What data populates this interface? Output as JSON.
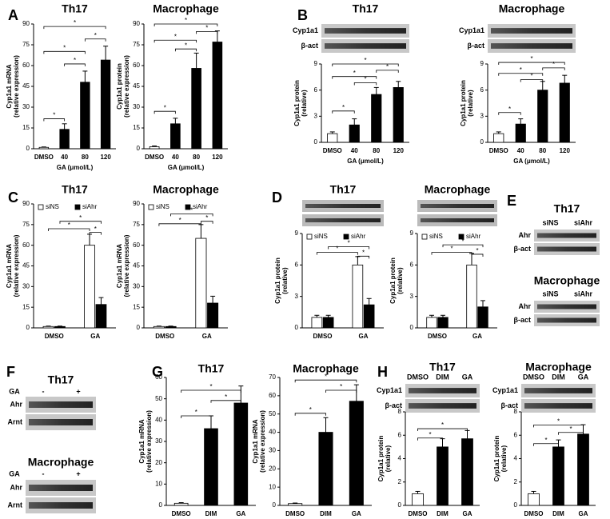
{
  "figure": {
    "panels": [
      "A",
      "B",
      "C",
      "D",
      "E",
      "F",
      "G",
      "H"
    ],
    "blots": [
      {
        "rows": [
          "Cyp1a1",
          "β-act"
        ]
      },
      {
        "rows": [
          "Cyp1a1",
          "β-act"
        ]
      },
      {
        "title": "Th17",
        "lanes": [
          "siNS",
          "siAhr"
        ],
        "rows": [
          "Ahr",
          "β-act"
        ]
      },
      {
        "title": "Macrophage",
        "lanes": [
          "siNS",
          "siAhr"
        ],
        "rows": [
          "Ahr",
          "β-act"
        ]
      },
      {
        "title": "Th17",
        "treatment": "GA",
        "lanes": [
          "-",
          "+"
        ],
        "rows": [
          "Ahr",
          "Arnt"
        ]
      },
      {
        "title": "Macrophage",
        "treatment": "GA",
        "lanes": [
          "-",
          "+"
        ],
        "rows": [
          "Ahr",
          "Arnt"
        ]
      },
      {
        "lanes": [
          "DMSO",
          "DIM",
          "GA"
        ],
        "rows": [
          "Cyp1a1",
          "β-act"
        ]
      },
      {
        "lanes": [
          "DMSO",
          "DIM",
          "GA"
        ],
        "rows": [
          "Cyp1a1",
          "β-act"
        ]
      }
    ]
  },
  "chart_data": [
    {
      "type": "bar",
      "title": "Th17",
      "ylabel": [
        "Cyp1a1 mRNA",
        "(relative expression)"
      ],
      "xlabel": "GA (μmol/L)",
      "categories": [
        "DMSO",
        "40",
        "80",
        "120"
      ],
      "values": [
        1,
        14,
        48,
        64
      ],
      "errors": [
        0.3,
        4,
        8,
        10
      ],
      "colors": [
        "#ffffff",
        "#000000",
        "#000000",
        "#000000"
      ],
      "ylim": [
        0,
        90
      ],
      "yticks": [
        0,
        15,
        30,
        45,
        60,
        75,
        90
      ],
      "significance": [
        "*",
        "*",
        "*",
        "*",
        "*"
      ]
    },
    {
      "type": "bar",
      "title": "Macrophage",
      "ylabel": [
        "Cyp1a1 protein",
        "(relative expression)"
      ],
      "xlabel": "GA (μmol/L)",
      "categories": [
        "DMSO",
        "40",
        "80",
        "120"
      ],
      "values": [
        1.5,
        18,
        58,
        77
      ],
      "errors": [
        0.5,
        4,
        11,
        8
      ],
      "colors": [
        "#ffffff",
        "#000000",
        "#000000",
        "#000000"
      ],
      "ylim": [
        0,
        90
      ],
      "yticks": [
        0,
        15,
        30,
        45,
        60,
        75,
        90
      ],
      "significance": [
        "*",
        "*",
        "*",
        "*",
        "*"
      ]
    },
    {
      "type": "bar",
      "title": "Th17",
      "ylabel": [
        "Cyp1a1 protein",
        "(relative)"
      ],
      "xlabel": "GA (μmol/L)",
      "categories": [
        "DMSO",
        "40",
        "80",
        "120"
      ],
      "values": [
        1,
        2,
        5.5,
        6.3
      ],
      "errors": [
        0.2,
        0.7,
        0.8,
        0.7
      ],
      "colors": [
        "#ffffff",
        "#000000",
        "#000000",
        "#000000"
      ],
      "ylim": [
        0,
        9
      ],
      "yticks": [
        0,
        3,
        6,
        9
      ],
      "significance": [
        "*",
        "*",
        "*",
        "*",
        "*"
      ]
    },
    {
      "type": "bar",
      "title": "Macrophage",
      "ylabel": [
        "Cyp1a1 protein",
        "(relative)"
      ],
      "xlabel": "GA (μmol/L)",
      "categories": [
        "DMSO",
        "40",
        "80",
        "120"
      ],
      "values": [
        1,
        2.1,
        6,
        6.8
      ],
      "errors": [
        0.2,
        0.6,
        1,
        0.9
      ],
      "colors": [
        "#ffffff",
        "#000000",
        "#000000",
        "#000000"
      ],
      "ylim": [
        0,
        9
      ],
      "yticks": [
        0,
        3,
        6,
        9
      ],
      "significance": [
        "*",
        "*",
        "*",
        "*",
        "*"
      ]
    },
    {
      "type": "grouped",
      "title": "Th17",
      "ylabel": [
        "Cyp1a1 mRNA",
        "(relative expression)"
      ],
      "categories": [
        "DMSO",
        "GA"
      ],
      "series": [
        {
          "name": "siNS",
          "color": "#ffffff",
          "values": [
            1,
            60
          ],
          "errors": [
            0.3,
            8
          ]
        },
        {
          "name": "siAhr",
          "color": "#000000",
          "values": [
            1,
            17
          ],
          "errors": [
            0.3,
            5
          ]
        }
      ],
      "ylim": [
        0,
        90
      ],
      "yticks": [
        0,
        15,
        30,
        45,
        60,
        75,
        90
      ],
      "significance": [
        "*",
        "*",
        "*"
      ]
    },
    {
      "type": "grouped",
      "title": "Macrophage",
      "ylabel": [
        "Cyp1a1 mRNA",
        "(relative expression)"
      ],
      "categories": [
        "DMSO",
        "GA"
      ],
      "series": [
        {
          "name": "siNS",
          "color": "#ffffff",
          "values": [
            1,
            65
          ],
          "errors": [
            0.3,
            10
          ]
        },
        {
          "name": "siAhr",
          "color": "#000000",
          "values": [
            1,
            18
          ],
          "errors": [
            0.3,
            5
          ]
        }
      ],
      "ylim": [
        0,
        90
      ],
      "yticks": [
        0,
        15,
        30,
        45,
        60,
        75,
        90
      ],
      "significance": [
        "*",
        "*",
        "*"
      ]
    },
    {
      "type": "grouped",
      "title": "Th17",
      "ylabel": [
        "Cyp1a1 protein",
        "(relative)"
      ],
      "categories": [
        "DMSO",
        "GA"
      ],
      "series": [
        {
          "name": "siNS",
          "color": "#ffffff",
          "values": [
            1,
            6
          ],
          "errors": [
            0.2,
            0.8
          ]
        },
        {
          "name": "siAhr",
          "color": "#000000",
          "values": [
            1,
            2.2
          ],
          "errors": [
            0.2,
            0.6
          ]
        }
      ],
      "ylim": [
        0,
        9
      ],
      "yticks": [
        0,
        3,
        6,
        9
      ],
      "significance": [
        "*",
        "*",
        "*"
      ]
    },
    {
      "type": "grouped",
      "title": "Macrophage",
      "ylabel": [
        "Cyp1a1 protein",
        "(relative)"
      ],
      "categories": [
        "DMSO",
        "GA"
      ],
      "series": [
        {
          "name": "siNS",
          "color": "#ffffff",
          "values": [
            1,
            6
          ],
          "errors": [
            0.2,
            1.1
          ]
        },
        {
          "name": "siAhr",
          "color": "#000000",
          "values": [
            1,
            2
          ],
          "errors": [
            0.2,
            0.6
          ]
        }
      ],
      "ylim": [
        0,
        9
      ],
      "yticks": [
        0,
        3,
        6,
        9
      ],
      "significance": [
        "*",
        "*",
        "*"
      ]
    },
    {
      "type": "bar",
      "title": "Th17",
      "ylabel": [
        "Cyp1a1 mRNA",
        "(relative expression)"
      ],
      "categories": [
        "DMSO",
        "DIM",
        "GA"
      ],
      "values": [
        1,
        36,
        48
      ],
      "errors": [
        0.3,
        6,
        8
      ],
      "colors": [
        "#ffffff",
        "#000000",
        "#000000"
      ],
      "ylim": [
        0,
        60
      ],
      "yticks": [
        0,
        10,
        20,
        30,
        40,
        50,
        60
      ],
      "significance": [
        "*",
        "*",
        "*"
      ]
    },
    {
      "type": "bar",
      "title": "Macrophage",
      "ylabel": [
        "Cyp1a1 mRNA",
        "(relative expression)"
      ],
      "categories": [
        "DMSO",
        "DIM",
        "GA"
      ],
      "values": [
        1,
        40,
        57
      ],
      "errors": [
        0.3,
        8,
        9
      ],
      "colors": [
        "#ffffff",
        "#000000",
        "#000000"
      ],
      "ylim": [
        0,
        70
      ],
      "yticks": [
        0,
        10,
        20,
        30,
        40,
        50,
        60,
        70
      ],
      "significance": [
        "*",
        "*",
        "*"
      ]
    },
    {
      "type": "bar",
      "title": "Th17",
      "ylabel": [
        "Cyp1a1 protein",
        "(relative)"
      ],
      "categories": [
        "DMSO",
        "DIM",
        "GA"
      ],
      "values": [
        1,
        5,
        5.7
      ],
      "errors": [
        0.2,
        0.7,
        0.7
      ],
      "colors": [
        "#ffffff",
        "#000000",
        "#000000"
      ],
      "ylim": [
        0,
        8
      ],
      "yticks": [
        0,
        2,
        4,
        6,
        8
      ],
      "significance": [
        "*",
        "*"
      ]
    },
    {
      "type": "bar",
      "title": "Macrophage",
      "ylabel": [
        "Cyp1a1 protein",
        "(relative)"
      ],
      "categories": [
        "DMSO",
        "DIM",
        "GA"
      ],
      "values": [
        1,
        5,
        6.1
      ],
      "errors": [
        0.2,
        0.6,
        0.8
      ],
      "colors": [
        "#ffffff",
        "#000000",
        "#000000"
      ],
      "ylim": [
        0,
        8
      ],
      "yticks": [
        0,
        2,
        4,
        6,
        8
      ],
      "significance": [
        "*",
        "*",
        "*"
      ]
    }
  ]
}
